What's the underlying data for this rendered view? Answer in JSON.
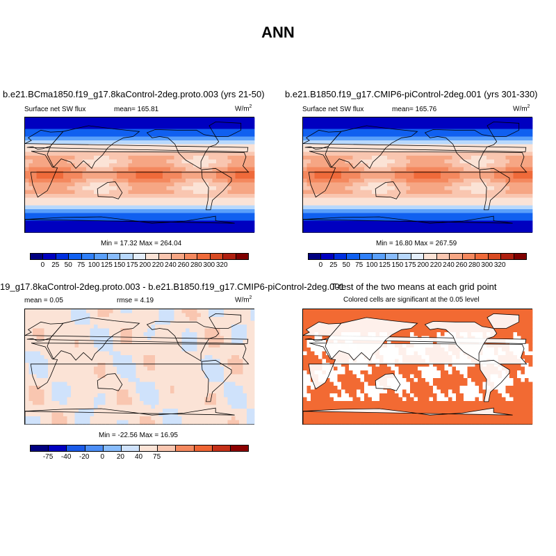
{
  "title": "ANN",
  "panels": {
    "p1": {
      "title": "b.e21.BCma1850.f19_g17.8kaControl-2deg.proto.003 (yrs 21-50)",
      "left": "Surface net SW flux",
      "mean": "mean= 165.81",
      "units": "W/m",
      "units_exp": "2",
      "minmax": "Min =  17.32 Max = 264.04"
    },
    "p2": {
      "title": "b.e21.B1850.f19_g17.CMIP6-piControl-2deg.001 (yrs 301-330)",
      "left": "Surface net SW flux",
      "mean": "mean= 165.76",
      "units": "W/m",
      "units_exp": "2",
      "minmax": "Min =  16.80 Max = 267.59"
    },
    "p3": {
      "title": "19_g17.8kaControl-2deg.proto.003 - b.e21.B1850.f19_g17.CMIP6-piControl-2deg.001",
      "left": "mean =   0.05",
      "mean": "rmse =   4.19",
      "units": "W/m",
      "units_exp": "2",
      "minmax": "Min = -22.56 Max =  16.95"
    },
    "p4": {
      "title": "T-test of the two means at each grid point",
      "left": "Colored cells are significant at the 0.05 level"
    }
  },
  "colorbar_main": {
    "labels": [
      "0",
      "25",
      "50",
      "75",
      "100",
      "125",
      "150",
      "175",
      "200",
      "220",
      "240",
      "260",
      "280",
      "300",
      "320"
    ],
    "colors": [
      "#000080",
      "#0000c0",
      "#0030e0",
      "#1060f0",
      "#3080f8",
      "#5aa0fa",
      "#88bcfc",
      "#b8d8fc",
      "#e4eefa",
      "#fbe3d6",
      "#f9c6b0",
      "#f6a684",
      "#f4885e",
      "#ef6a3a",
      "#d84a22",
      "#b02010",
      "#800000"
    ]
  },
  "colorbar_diff": {
    "labels": [
      "-75",
      "-40",
      "-20",
      "0",
      "20",
      "40",
      "75"
    ],
    "colors": [
      "#000080",
      "#0000c0",
      "#1a5ae8",
      "#4c8ef6",
      "#88bcfc",
      "#cfe2fb",
      "#fbe3d6",
      "#f9c6b0",
      "#f4885e",
      "#ee6433",
      "#c43018",
      "#8b0000"
    ]
  },
  "significance_color": "#f26a33"
}
